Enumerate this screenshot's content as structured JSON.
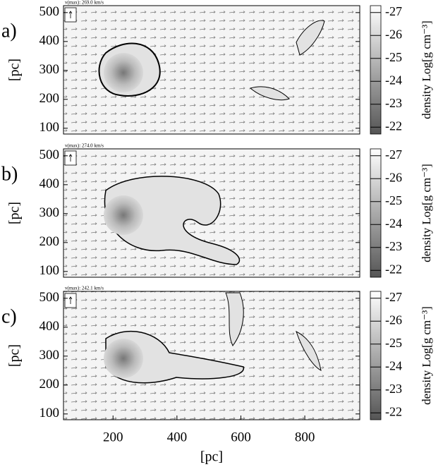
{
  "chart_data": [
    {
      "type": "contour",
      "panel_label": "a)",
      "vmax_label": "v(max): 269.0 km/s",
      "y_label": "[pc]",
      "ylim": [
        80,
        524
      ],
      "yticks": [
        100,
        200,
        300,
        400,
        500
      ],
      "colorbar_label": "density Log[g cm⁻³]",
      "clim": [
        -27.3,
        -21.7
      ],
      "cticks": [
        -27,
        -26,
        -25,
        -24,
        -23,
        -22
      ]
    },
    {
      "type": "contour",
      "panel_label": "b)",
      "vmax_label": "v(max): 274.0 km/s",
      "y_label": "[pc]",
      "ylim": [
        80,
        524
      ],
      "yticks": [
        100,
        200,
        300,
        400,
        500
      ],
      "colorbar_label": "density Log[g cm⁻³]",
      "clim": [
        -27.3,
        -21.7
      ],
      "cticks": [
        -27,
        -26,
        -25,
        -24,
        -23,
        -22
      ]
    },
    {
      "type": "contour",
      "panel_label": "c)",
      "vmax_label": "v(max): 242.1 km/s",
      "y_label": "[pc]",
      "x_label": "[pc]",
      "xlim": [
        45,
        972
      ],
      "xticks": [
        200,
        400,
        600,
        800
      ],
      "ylim": [
        80,
        524
      ],
      "yticks": [
        100,
        200,
        300,
        400,
        500
      ],
      "colorbar_label": "density Log[g cm⁻³]",
      "clim": [
        -27.3,
        -21.7
      ],
      "cticks": [
        -27,
        -26,
        -25,
        -24,
        -23,
        -22
      ]
    }
  ]
}
